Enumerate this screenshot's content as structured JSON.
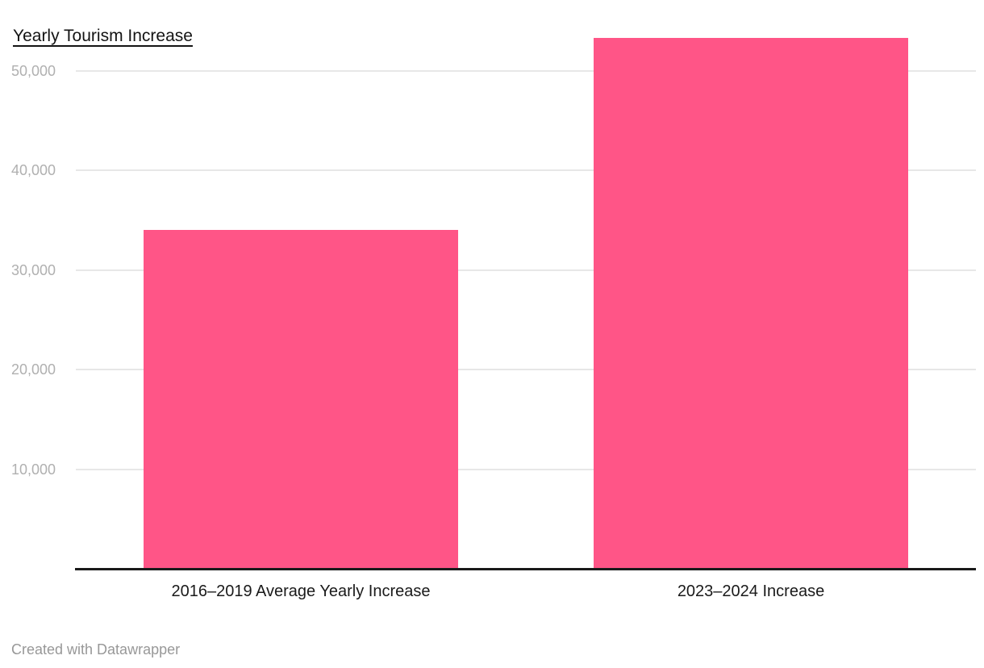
{
  "header": {
    "title": "Yearly Tourism Increase"
  },
  "footer": {
    "credit": "Created with Datawrapper"
  },
  "colors": {
    "bar": "#ff5587",
    "gridline": "#e7e7e7",
    "tick_label": "#b0b0b0",
    "axis_line": "#1a1a1a",
    "category_label": "#1a1a1a",
    "title_text": "#141414",
    "footer_text": "#989898"
  },
  "chart_data": {
    "type": "bar",
    "title": "Yearly Tourism Increase",
    "categories": [
      "2016–2019 Average Yearly Increase",
      "2023–2024 Increase"
    ],
    "values": [
      34000,
      53300
    ],
    "series_color": "#ff5587",
    "yticks": [
      {
        "value": 10000,
        "label": "10,000"
      },
      {
        "value": 20000,
        "label": "20,000"
      },
      {
        "value": 30000,
        "label": "30,000"
      },
      {
        "value": 40000,
        "label": "40,000"
      },
      {
        "value": 50000,
        "label": "50,000"
      }
    ],
    "ylim": [
      0,
      53300
    ],
    "xlabel": "",
    "ylabel": "",
    "grid": "horizontal",
    "legend": "none",
    "credit": "Created with Datawrapper"
  }
}
